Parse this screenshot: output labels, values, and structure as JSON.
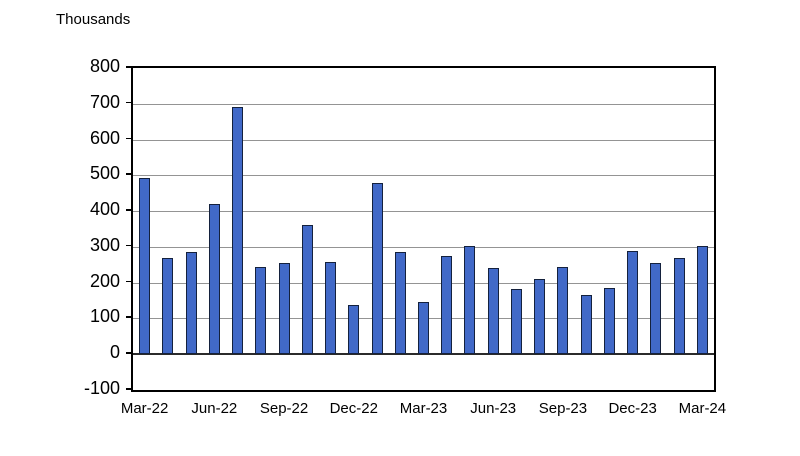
{
  "chart": {
    "unit_label": "Thousands"
  },
  "chart_data": {
    "type": "bar",
    "title": "",
    "xlabel": "",
    "ylabel": "Thousands",
    "x": [
      "Mar-22",
      "Apr-22",
      "May-22",
      "Jun-22",
      "Jul-22",
      "Aug-22",
      "Sep-22",
      "Oct-22",
      "Nov-22",
      "Dec-22",
      "Jan-23",
      "Feb-23",
      "Mar-23",
      "Apr-23",
      "May-23",
      "Jun-23",
      "Jul-23",
      "Aug-23",
      "Sep-23",
      "Oct-23",
      "Nov-23",
      "Dec-23",
      "Jan-24",
      "Feb-24",
      "Mar-24"
    ],
    "values": [
      493,
      270,
      285,
      420,
      690,
      243,
      255,
      360,
      257,
      137,
      480,
      287,
      146,
      276,
      302,
      240,
      183,
      210,
      244,
      165,
      184,
      289,
      255,
      268,
      303
    ],
    "visible_xtick_labels": [
      "Mar-22",
      "Jun-22",
      "Sep-22",
      "Dec-22",
      "Mar-23",
      "Jun-23",
      "Sep-23",
      "Dec-23",
      "Mar-24"
    ],
    "xtick_interval": 3,
    "yticks": [
      800,
      700,
      600,
      500,
      400,
      300,
      200,
      100,
      0,
      -100
    ],
    "ylim": [
      -100,
      800
    ],
    "grid": true,
    "legend": "none",
    "colors": {
      "bar_fill": "#4169C8",
      "bar_border": "#14213D",
      "gridline": "#949494",
      "zero_line": "#2b2b2b",
      "plot_border": "#000000",
      "text": "#000000",
      "background": "#ffffff"
    }
  }
}
